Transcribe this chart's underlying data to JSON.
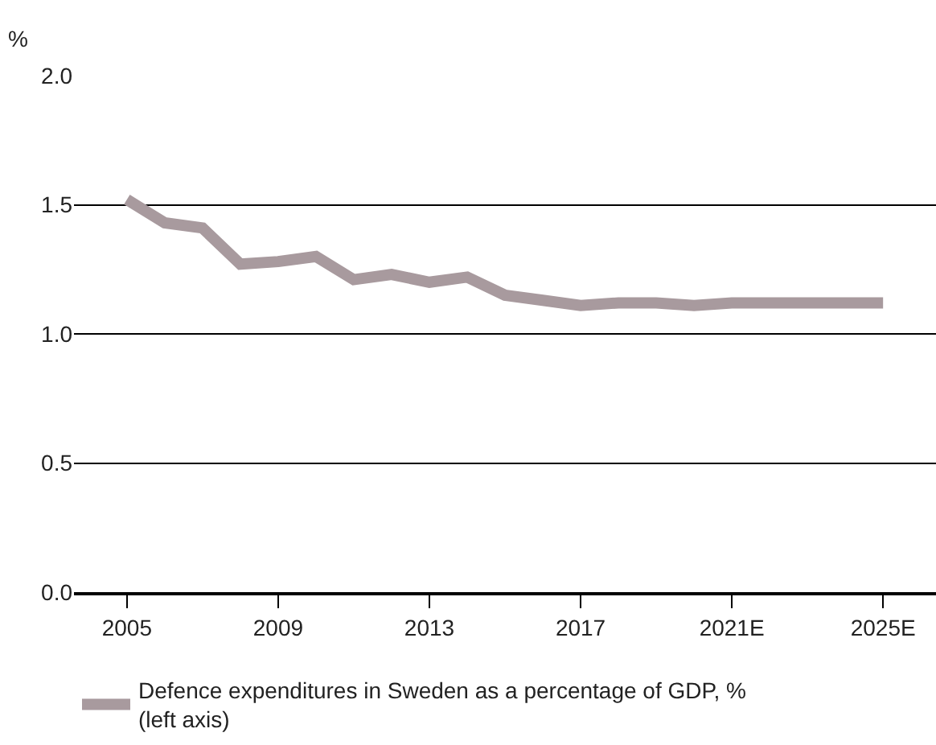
{
  "chart_data": {
    "type": "line",
    "ylabel": "%",
    "x": [
      2005,
      2006,
      2007,
      2008,
      2009,
      2010,
      2011,
      2012,
      2013,
      2014,
      2015,
      2016,
      2017,
      2018,
      2019,
      2020,
      2021,
      2022,
      2023,
      2024,
      2025
    ],
    "series": [
      {
        "name": "Defence expenditures in Sweden as a percentage of GDP, % (left axis)",
        "color": "#a89a9e",
        "values": [
          1.52,
          1.43,
          1.41,
          1.27,
          1.28,
          1.3,
          1.21,
          1.23,
          1.2,
          1.22,
          1.15,
          1.13,
          1.11,
          1.12,
          1.12,
          1.11,
          1.12,
          1.12,
          1.12,
          1.12,
          1.12
        ]
      }
    ],
    "xlim": [
      2003.6,
      2026.4
    ],
    "xticks": [
      2005,
      2009,
      2013,
      2017,
      {
        "value": 2021,
        "label": "2021E"
      },
      {
        "value": 2025,
        "label": "2025E"
      }
    ],
    "ylim": [
      0,
      2.0
    ],
    "yticks": [
      {
        "value": 0,
        "label": "0.0"
      },
      {
        "value": 0.5,
        "label": "0.5"
      },
      {
        "value": 1.0,
        "label": "1.0"
      },
      {
        "value": 1.5,
        "label": "1.5"
      },
      {
        "value": 2.0,
        "label": "2.0"
      }
    ],
    "grid": "y",
    "legend": "bottom left",
    "marker": "none",
    "line_style": "solid"
  }
}
